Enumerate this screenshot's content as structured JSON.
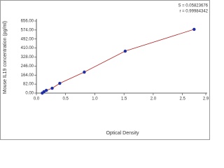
{
  "chart_data": {
    "type": "scatter",
    "x_label": "Optical Density",
    "y_label": "Mouse IL19 concentration (pg/ml)",
    "annotations": [
      "S = 0.05823676",
      "r = 0.99984342"
    ],
    "x": [
      0.1,
      0.13,
      0.17,
      0.27,
      0.4,
      0.82,
      1.52,
      2.7
    ],
    "series": [
      {
        "color": "#1f2fa8",
        "line_color": "#b22222",
        "values": [
          0,
          13,
          25,
          44,
          89,
          191,
          382,
          580
        ]
      }
    ],
    "xlim": [
      0,
      2.9
    ],
    "xticks": [
      {
        "value": 0,
        "label": "0.0"
      },
      0.5,
      {
        "value": 1,
        "label": "1.0"
      },
      1.5,
      {
        "value": 2,
        "label": "2.0"
      },
      2.5,
      2.9
    ],
    "ylim": [
      0,
      656
    ],
    "yticks": [
      {
        "value": 0,
        "label": "0.00"
      },
      {
        "value": 82,
        "label": "82.00"
      },
      {
        "value": 164,
        "label": "164.00"
      },
      {
        "value": 246,
        "label": "246.00"
      },
      {
        "value": 328,
        "label": "328.00"
      },
      {
        "value": 410,
        "label": "410.00"
      },
      {
        "value": 492,
        "label": "492.00"
      },
      {
        "value": 574,
        "label": "574.00"
      },
      {
        "value": 656,
        "label": "656.00"
      }
    ]
  }
}
